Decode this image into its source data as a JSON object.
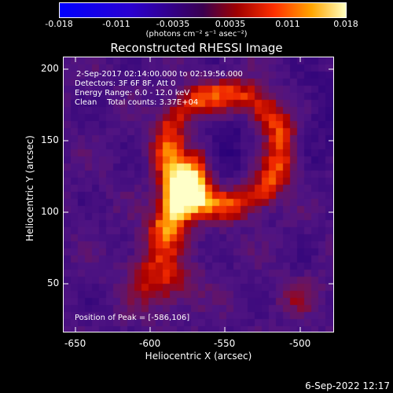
{
  "colorbar": {
    "tick_labels": [
      "-0.018",
      "-0.011",
      "-0.0035",
      "0.0035",
      "0.011",
      "0.018"
    ],
    "units": "(photons cm⁻² s⁻¹ asec⁻²)"
  },
  "title": "Reconstructed RHESSI Image",
  "info": {
    "time_range": "2-Sep-2017 02:14:00.000 to 02:19:56.000",
    "detectors": "Detectors: 3F 6F 8F, Att 0",
    "energy": "Energy Range: 6.0 - 12.0 keV",
    "clean": "Clean    Total counts: 3.37E+04",
    "peak": "Position of Peak = [-586,106]"
  },
  "axes": {
    "xlabel": "Heliocentric X (arcsec)",
    "ylabel": "Heliocentric Y (arcsec)",
    "x_ticks": [
      "-650",
      "-600",
      "-550",
      "-500"
    ],
    "y_ticks": [
      "200",
      "150",
      "100",
      "50"
    ],
    "xlim": [
      -665,
      -475
    ],
    "ylim": [
      15,
      208
    ]
  },
  "timestamp": "6-Sep-2022 12:17",
  "colors": {
    "background": "#000000",
    "foreground": "#ffffff"
  }
}
